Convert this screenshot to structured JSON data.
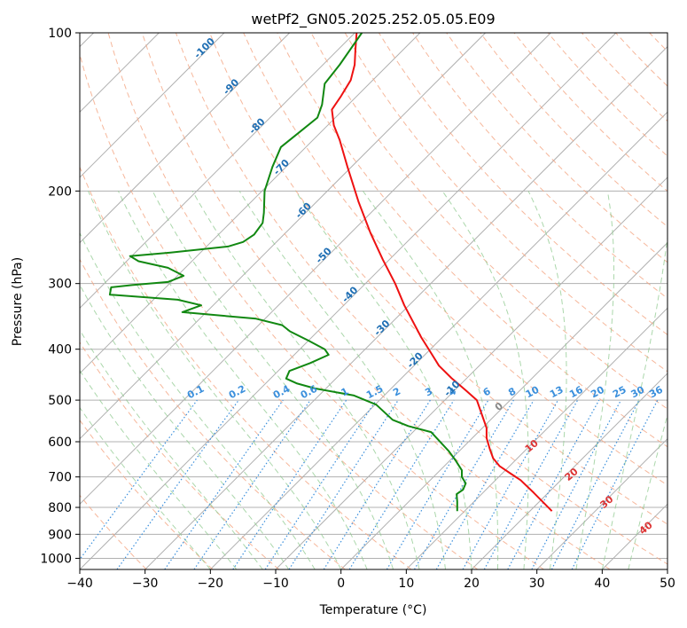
{
  "chart_data": {
    "type": "line",
    "title": "wetPf2_GN05.2025.252.05.05.E09",
    "xlabel": "Temperature (°C)",
    "ylabel": "Pressure (hPa)",
    "xlim": [
      -40,
      50
    ],
    "ylim": [
      1050,
      100
    ],
    "y_scale": "log",
    "x_ticks": [
      -40,
      -30,
      -20,
      -10,
      0,
      10,
      20,
      30,
      40,
      50
    ],
    "x_tick_labels": [
      "−40",
      "−30",
      "−20",
      "−10",
      "0",
      "10",
      "20",
      "30",
      "40",
      "50"
    ],
    "y_ticks": [
      100,
      200,
      300,
      400,
      500,
      600,
      700,
      800,
      900,
      1000
    ],
    "y_tick_labels": [
      "100",
      "200",
      "300",
      "400",
      "500",
      "600",
      "700",
      "800",
      "900",
      "1000"
    ],
    "grid": true,
    "colors": {
      "temperature": "#ee1111",
      "dewpoint": "#118811",
      "dry_adiabat": "#f4a582",
      "moist_adiabat": "#8fc98f",
      "mixing_ratio": "#3a8fdc",
      "isotherm_label": "#1f6fb4",
      "grid": "#b0b0b0"
    },
    "series": [
      {
        "key": "temperature",
        "points": [
          [
            32.3,
            813
          ],
          [
            29.5,
            750
          ],
          [
            27.5,
            710
          ],
          [
            26,
            690
          ],
          [
            24.3,
            668
          ],
          [
            23.3,
            645
          ],
          [
            22.8,
            620
          ],
          [
            22.3,
            590
          ],
          [
            22.3,
            565
          ],
          [
            20.8,
            500
          ],
          [
            19.2,
            480
          ],
          [
            17,
            455
          ],
          [
            15,
            430
          ],
          [
            13.7,
            405
          ],
          [
            12.3,
            380
          ],
          [
            9.7,
            330
          ],
          [
            8.3,
            300
          ],
          [
            6.4,
            270
          ],
          [
            4.5,
            240
          ],
          [
            2.7,
            210
          ],
          [
            1,
            180
          ],
          [
            -0.2,
            160
          ],
          [
            -1.1,
            150
          ],
          [
            -1.4,
            140
          ],
          [
            0,
            132
          ],
          [
            1.5,
            123
          ],
          [
            2.1,
            115
          ],
          [
            2.2,
            108
          ],
          [
            2.4,
            100
          ]
        ]
      },
      {
        "key": "dewpoint",
        "points": [
          [
            17.8,
            813
          ],
          [
            17.8,
            780
          ],
          [
            17.7,
            755
          ],
          [
            18.7,
            740
          ],
          [
            19.1,
            720
          ],
          [
            18.5,
            700
          ],
          [
            18.5,
            680
          ],
          [
            17.5,
            650
          ],
          [
            16.5,
            625
          ],
          [
            13.8,
            575
          ],
          [
            10.3,
            560
          ],
          [
            7.9,
            545
          ],
          [
            5.4,
            510
          ],
          [
            2,
            490
          ],
          [
            -4,
            475
          ],
          [
            -6.7,
            465
          ],
          [
            -8.4,
            455
          ],
          [
            -7.9,
            440
          ],
          [
            -4.7,
            425
          ],
          [
            -1.9,
            410
          ],
          [
            -2.5,
            400
          ],
          [
            -5,
            385
          ],
          [
            -7.8,
            370
          ],
          [
            -9,
            360
          ],
          [
            -13,
            350
          ],
          [
            -24.3,
            340
          ],
          [
            -21.4,
            330
          ],
          [
            -25,
            322
          ],
          [
            -35.4,
            315
          ],
          [
            -35.2,
            305
          ],
          [
            -32,
            302
          ],
          [
            -26.5,
            298
          ],
          [
            -24.1,
            290
          ],
          [
            -26.5,
            280
          ],
          [
            -31,
            272
          ],
          [
            -32.3,
            266
          ],
          [
            -26.1,
            262
          ],
          [
            -17.3,
            255
          ],
          [
            -15,
            250
          ],
          [
            -13.3,
            242
          ],
          [
            -12,
            230
          ],
          [
            -11.8,
            220
          ],
          [
            -11.7,
            200
          ],
          [
            -10.5,
            180
          ],
          [
            -9.2,
            165
          ],
          [
            -6.5,
            155
          ],
          [
            -3.6,
            145
          ],
          [
            -2.9,
            137
          ],
          [
            -2.5,
            125
          ],
          [
            -0.2,
            115
          ],
          [
            3.2,
            100
          ]
        ]
      }
    ],
    "isotherm_labels": [
      "-100",
      "-90",
      "-80",
      "-70",
      "-60",
      "-50",
      "-40",
      "-30",
      "-20",
      "-10"
    ],
    "mixing_ratio_labels": [
      "0.1",
      "0.2",
      "0.4",
      "0.6",
      "1",
      "1.5",
      "2",
      "3",
      "4",
      "6",
      "8",
      "10",
      "13",
      "16",
      "20",
      "25",
      "30",
      "36"
    ],
    "moist_adiabat_labels": [
      "0",
      "10",
      "20",
      "30",
      "40"
    ]
  }
}
